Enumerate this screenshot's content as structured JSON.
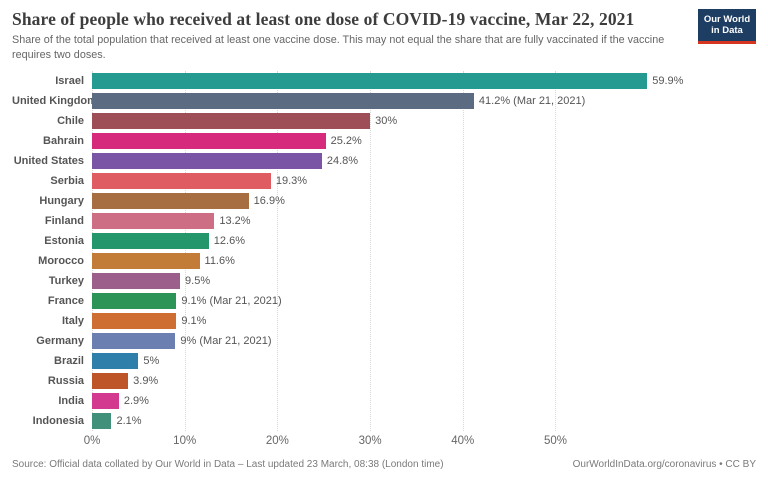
{
  "header": {
    "title": "Share of people who received at least one dose of COVID-19 vaccine, Mar 22, 2021",
    "subtitle": "Share of the total population that received at least one vaccine dose. This may not equal the share that are fully vaccinated if the vaccine requires two doses.",
    "logo": {
      "line1": "Our World",
      "line2": "in Data",
      "bg_color": "#1d3d63",
      "accent_color": "#d6361f"
    }
  },
  "chart_data": {
    "type": "bar",
    "orientation": "horizontal",
    "title": "Share of people who received at least one dose of COVID-19 vaccine, Mar 22, 2021",
    "xlabel": "",
    "ylabel": "",
    "xlim": [
      0,
      71.2
    ],
    "grid": "dotted-vertical",
    "categories": [
      "Israel",
      "United Kingdom",
      "Chile",
      "Bahrain",
      "United States",
      "Serbia",
      "Hungary",
      "Finland",
      "Estonia",
      "Morocco",
      "Turkey",
      "France",
      "Italy",
      "Germany",
      "Brazil",
      "Russia",
      "India",
      "Indonesia"
    ],
    "values": [
      59.9,
      41.2,
      30,
      25.2,
      24.8,
      19.3,
      16.9,
      13.2,
      12.6,
      11.6,
      9.5,
      9.1,
      9.1,
      9,
      5,
      3.9,
      2.9,
      2.1
    ],
    "value_labels": [
      "59.9%",
      "41.2% (Mar 21, 2021)",
      "30%",
      "25.2%",
      "24.8%",
      "19.3%",
      "16.9%",
      "13.2%",
      "12.6%",
      "11.6%",
      "9.5%",
      "9.1% (Mar 21, 2021)",
      "9.1%",
      "9% (Mar 21, 2021)",
      "5%",
      "3.9%",
      "2.9%",
      "2.1%"
    ],
    "bar_colors": [
      "#249a90",
      "#5b6c82",
      "#9e4e56",
      "#d62a7d",
      "#7b55a5",
      "#e05c63",
      "#a76f41",
      "#ce6e84",
      "#23966c",
      "#c37c38",
      "#9c5e8a",
      "#2c9457",
      "#cf6e33",
      "#6b80b0",
      "#2e80ab",
      "#bd5529",
      "#d2398f",
      "#40907a"
    ],
    "x_ticks": [
      "0%",
      "10%",
      "20%",
      "30%",
      "40%",
      "50%"
    ],
    "x_tick_values": [
      0,
      10,
      20,
      30,
      40,
      50
    ]
  },
  "footer": {
    "source": "Source: Official data collated by Our World in Data – Last updated 23 March, 08:38 (London time)",
    "link": "OurWorldInData.org/coronavirus • CC BY"
  }
}
